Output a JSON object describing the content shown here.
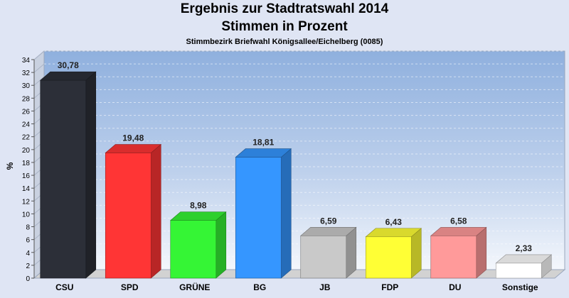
{
  "chart_data": {
    "type": "bar",
    "title": "Ergebnis zur Stadtratswahl 2014",
    "title_line2": "Stimmen in Prozent",
    "subtitle": "Stimmbezirk Briefwahl Königsallee/Eichelberg (0085)",
    "ylabel": "%",
    "xlabel": "",
    "ylim": [
      0,
      34
    ],
    "y_ticks": [
      "0",
      "2",
      "4",
      "6",
      "8",
      "10",
      "12",
      "14",
      "16",
      "18",
      "20",
      "22",
      "24",
      "26",
      "28",
      "30",
      "32",
      "34"
    ],
    "grid": true,
    "categories": [
      "CSU",
      "SPD",
      "GRÜNE",
      "BG",
      "JB",
      "FDP",
      "DU",
      "Sonstige"
    ],
    "values": [
      30.78,
      19.48,
      8.98,
      18.81,
      6.59,
      6.43,
      6.58,
      2.33
    ],
    "value_labels": [
      "30,78",
      "19,48",
      "8,98",
      "18,81",
      "6,59",
      "6,43",
      "6,58",
      "2,33"
    ],
    "colors": [
      "#2c2f38",
      "#ff3535",
      "#35f535",
      "#3596ff",
      "#c9c9c9",
      "#ffff35",
      "#ff9a9a",
      "#ffffff"
    ]
  }
}
